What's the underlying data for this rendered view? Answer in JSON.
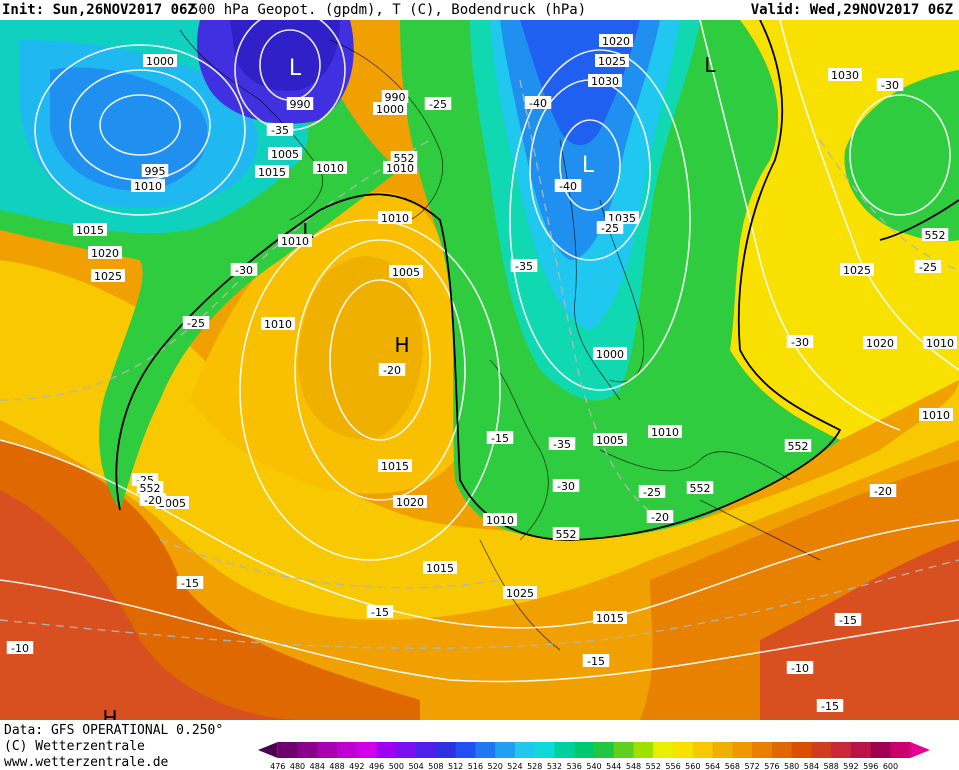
{
  "header": {
    "init": "Init: Sun,26NOV2017 06Z",
    "product": "500 hPa Geopot. (gpdm), T (C), Bodendruck (hPa)",
    "valid": "Valid: Wed,29NOV2017 06Z"
  },
  "footer": {
    "data": "Data: GFS OPERATIONAL 0.250°",
    "copyright": "(C) Wetterzentrale",
    "url": "www.wetterzentrale.de"
  },
  "colorbar": {
    "ticks": [
      "476",
      "480",
      "484",
      "488",
      "492",
      "496",
      "500",
      "504",
      "508",
      "512",
      "516",
      "520",
      "524",
      "528",
      "532",
      "536",
      "540",
      "544",
      "548",
      "552",
      "556",
      "560",
      "564",
      "568",
      "572",
      "576",
      "580",
      "584",
      "588",
      "592",
      "596",
      "600"
    ],
    "colors": [
      "#4a0050",
      "#6e0070",
      "#8a008c",
      "#a800b0",
      "#c000d0",
      "#d000e8",
      "#a000f0",
      "#7a10f0",
      "#5020e8",
      "#3030e0",
      "#2050f0",
      "#2078f0",
      "#20a0f0",
      "#20c8f0",
      "#10d8d8",
      "#00d0a0",
      "#00c870",
      "#20c840",
      "#60d020",
      "#a0e000",
      "#e8f000",
      "#f8e000",
      "#f8c800",
      "#f0b000",
      "#f09800",
      "#e88000",
      "#e06800",
      "#d85000",
      "#d03c20",
      "#c82838",
      "#b81448",
      "#a00050",
      "#c80070",
      "#e80090"
    ]
  },
  "map": {
    "colors": {
      "deep_blue": "#4030e0",
      "blue": "#2880f0",
      "cyan": "#20c8f0",
      "teal": "#10d8b0",
      "green": "#30cc40",
      "yellow": "#f8e800",
      "gold": "#f8c800",
      "orange": "#f09800",
      "dark_orange": "#e06800",
      "red_orange": "#d85020"
    },
    "symbols": {
      "lows": [
        "L",
        "L",
        "L",
        "L"
      ],
      "highs": [
        "H",
        "H"
      ]
    },
    "isobar_labels": [
      "1000",
      "990",
      "995",
      "1010",
      "1015",
      "1020",
      "1025",
      "1010",
      "990",
      "1000",
      "1005",
      "1015",
      "1020",
      "1025",
      "1030",
      "1010",
      "1005",
      "1035",
      "1030",
      "1025",
      "1015",
      "1020",
      "1000",
      "1005",
      "1010",
      "1010",
      "1015",
      "1025",
      "1020",
      "1010",
      "1010",
      "1005",
      "1010",
      "1015",
      "1010",
      "1010"
    ],
    "temperature_labels": [
      "-25",
      "-35",
      "-40",
      "-40",
      "-35",
      "-30",
      "-25",
      "-15",
      "-20",
      "-30",
      "-35",
      "-30",
      "-25",
      "-20",
      "-25",
      "-15",
      "-20",
      "-25",
      "-20",
      "-15",
      "-15",
      "-10",
      "-15",
      "-10",
      "-15",
      "-30",
      "-25"
    ],
    "geopotential_labels": [
      "552",
      "552",
      "552",
      "552",
      "552",
      "552"
    ]
  }
}
